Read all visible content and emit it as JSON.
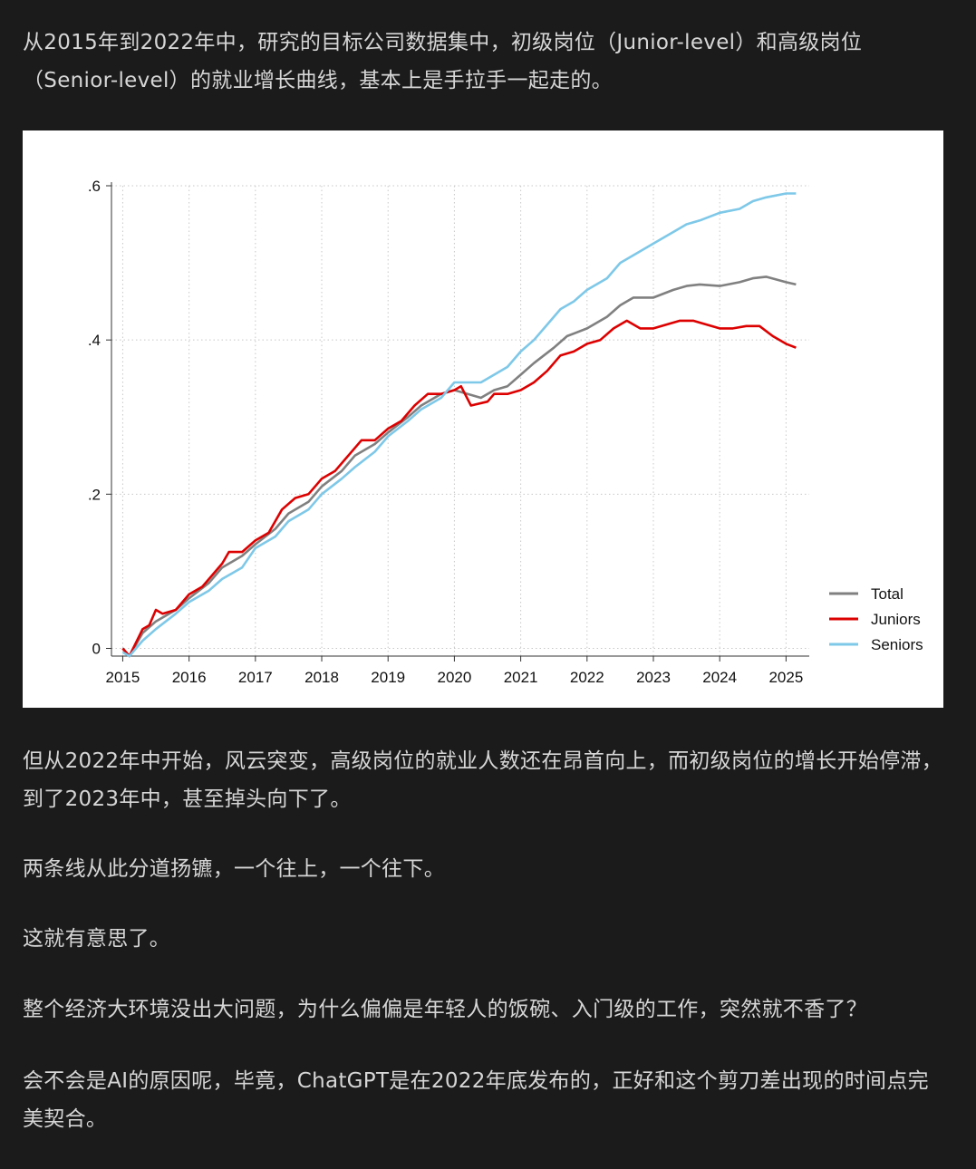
{
  "article": {
    "p1": "从2015年到2022年中，研究的目标公司数据集中，初级岗位（Junior-level）和高级岗位（Senior-level）的就业增长曲线，基本上是手拉手一起走的。",
    "p2": "但从2022年中开始，风云突变，高级岗位的就业人数还在昂首向上，而初级岗位的增长开始停滞，到了2023年中，甚至掉头向下了。",
    "p3": "两条线从此分道扬镳，一个往上，一个往下。",
    "p4": "这就有意思了。",
    "p5": "整个经济大环境没出大问题，为什么偏偏是年轻人的饭碗、入门级的工作，突然就不香了？",
    "p6": "会不会是AI的原因呢，毕竟，ChatGPT是在2022年底发布的，正好和这个剪刀差出现的时间点完美契合。"
  },
  "chart_data": {
    "type": "line",
    "title": "",
    "xlabel": "",
    "ylabel": "",
    "xlim": [
      2015,
      2025.2
    ],
    "ylim": [
      -0.01,
      0.6
    ],
    "xticks": [
      2015,
      2016,
      2017,
      2018,
      2019,
      2020,
      2021,
      2022,
      2023,
      2024,
      2025
    ],
    "xtick_labels": [
      "2015",
      "2016",
      "2017",
      "2018",
      "2019",
      "2020",
      "2021",
      "2022",
      "2023",
      "2024",
      "2025"
    ],
    "yticks": [
      0,
      0.2,
      0.4,
      0.6
    ],
    "ytick_labels": [
      "0",
      ".2",
      ".4",
      ".6"
    ],
    "grid": true,
    "legend": "bottom-right",
    "series": [
      {
        "name": "Total",
        "color": "#808080",
        "points": [
          [
            2015.0,
            0.0
          ],
          [
            2015.1,
            -0.01
          ],
          [
            2015.3,
            0.02
          ],
          [
            2015.5,
            0.035
          ],
          [
            2015.8,
            0.05
          ],
          [
            2016.0,
            0.065
          ],
          [
            2016.3,
            0.085
          ],
          [
            2016.5,
            0.105
          ],
          [
            2016.8,
            0.12
          ],
          [
            2017.0,
            0.135
          ],
          [
            2017.3,
            0.155
          ],
          [
            2017.5,
            0.175
          ],
          [
            2017.8,
            0.19
          ],
          [
            2018.0,
            0.21
          ],
          [
            2018.3,
            0.23
          ],
          [
            2018.5,
            0.25
          ],
          [
            2018.8,
            0.265
          ],
          [
            2019.0,
            0.28
          ],
          [
            2019.3,
            0.3
          ],
          [
            2019.5,
            0.315
          ],
          [
            2019.8,
            0.33
          ],
          [
            2020.0,
            0.335
          ],
          [
            2020.2,
            0.33
          ],
          [
            2020.4,
            0.325
          ],
          [
            2020.6,
            0.335
          ],
          [
            2020.8,
            0.34
          ],
          [
            2021.0,
            0.355
          ],
          [
            2021.2,
            0.37
          ],
          [
            2021.5,
            0.39
          ],
          [
            2021.7,
            0.405
          ],
          [
            2022.0,
            0.415
          ],
          [
            2022.3,
            0.43
          ],
          [
            2022.5,
            0.445
          ],
          [
            2022.7,
            0.455
          ],
          [
            2023.0,
            0.455
          ],
          [
            2023.3,
            0.465
          ],
          [
            2023.5,
            0.47
          ],
          [
            2023.7,
            0.472
          ],
          [
            2024.0,
            0.47
          ],
          [
            2024.3,
            0.475
          ],
          [
            2024.5,
            0.48
          ],
          [
            2024.7,
            0.482
          ],
          [
            2025.0,
            0.475
          ],
          [
            2025.15,
            0.472
          ]
        ]
      },
      {
        "name": "Juniors",
        "color": "#dd0000",
        "points": [
          [
            2015.0,
            0.0
          ],
          [
            2015.1,
            -0.01
          ],
          [
            2015.3,
            0.025
          ],
          [
            2015.4,
            0.03
          ],
          [
            2015.5,
            0.05
          ],
          [
            2015.6,
            0.045
          ],
          [
            2015.8,
            0.05
          ],
          [
            2016.0,
            0.07
          ],
          [
            2016.2,
            0.08
          ],
          [
            2016.4,
            0.1
          ],
          [
            2016.5,
            0.11
          ],
          [
            2016.6,
            0.125
          ],
          [
            2016.8,
            0.125
          ],
          [
            2017.0,
            0.14
          ],
          [
            2017.2,
            0.15
          ],
          [
            2017.4,
            0.18
          ],
          [
            2017.6,
            0.195
          ],
          [
            2017.8,
            0.2
          ],
          [
            2018.0,
            0.22
          ],
          [
            2018.2,
            0.23
          ],
          [
            2018.4,
            0.25
          ],
          [
            2018.6,
            0.27
          ],
          [
            2018.8,
            0.27
          ],
          [
            2019.0,
            0.285
          ],
          [
            2019.2,
            0.295
          ],
          [
            2019.4,
            0.315
          ],
          [
            2019.6,
            0.33
          ],
          [
            2019.8,
            0.33
          ],
          [
            2020.0,
            0.335
          ],
          [
            2020.1,
            0.34
          ],
          [
            2020.25,
            0.315
          ],
          [
            2020.5,
            0.32
          ],
          [
            2020.6,
            0.33
          ],
          [
            2020.8,
            0.33
          ],
          [
            2021.0,
            0.335
          ],
          [
            2021.2,
            0.345
          ],
          [
            2021.4,
            0.36
          ],
          [
            2021.6,
            0.38
          ],
          [
            2021.8,
            0.385
          ],
          [
            2022.0,
            0.395
          ],
          [
            2022.2,
            0.4
          ],
          [
            2022.4,
            0.415
          ],
          [
            2022.6,
            0.425
          ],
          [
            2022.8,
            0.415
          ],
          [
            2023.0,
            0.415
          ],
          [
            2023.2,
            0.42
          ],
          [
            2023.4,
            0.425
          ],
          [
            2023.6,
            0.425
          ],
          [
            2023.8,
            0.42
          ],
          [
            2024.0,
            0.415
          ],
          [
            2024.2,
            0.415
          ],
          [
            2024.4,
            0.418
          ],
          [
            2024.6,
            0.418
          ],
          [
            2024.8,
            0.405
          ],
          [
            2025.0,
            0.395
          ],
          [
            2025.15,
            0.39
          ]
        ]
      },
      {
        "name": "Seniors",
        "color": "#7ec8e8",
        "points": [
          [
            2015.0,
            -0.005
          ],
          [
            2015.1,
            -0.01
          ],
          [
            2015.3,
            0.01
          ],
          [
            2015.5,
            0.025
          ],
          [
            2015.8,
            0.045
          ],
          [
            2016.0,
            0.06
          ],
          [
            2016.3,
            0.075
          ],
          [
            2016.5,
            0.09
          ],
          [
            2016.8,
            0.105
          ],
          [
            2017.0,
            0.13
          ],
          [
            2017.3,
            0.145
          ],
          [
            2017.5,
            0.165
          ],
          [
            2017.8,
            0.18
          ],
          [
            2018.0,
            0.2
          ],
          [
            2018.3,
            0.22
          ],
          [
            2018.5,
            0.235
          ],
          [
            2018.8,
            0.255
          ],
          [
            2019.0,
            0.275
          ],
          [
            2019.3,
            0.295
          ],
          [
            2019.5,
            0.31
          ],
          [
            2019.8,
            0.325
          ],
          [
            2020.0,
            0.345
          ],
          [
            2020.2,
            0.345
          ],
          [
            2020.4,
            0.345
          ],
          [
            2020.6,
            0.355
          ],
          [
            2020.8,
            0.365
          ],
          [
            2021.0,
            0.385
          ],
          [
            2021.2,
            0.4
          ],
          [
            2021.4,
            0.42
          ],
          [
            2021.6,
            0.44
          ],
          [
            2021.8,
            0.45
          ],
          [
            2022.0,
            0.465
          ],
          [
            2022.3,
            0.48
          ],
          [
            2022.5,
            0.5
          ],
          [
            2022.7,
            0.51
          ],
          [
            2023.0,
            0.525
          ],
          [
            2023.3,
            0.54
          ],
          [
            2023.5,
            0.55
          ],
          [
            2023.7,
            0.555
          ],
          [
            2024.0,
            0.565
          ],
          [
            2024.3,
            0.57
          ],
          [
            2024.5,
            0.58
          ],
          [
            2024.7,
            0.585
          ],
          [
            2025.0,
            0.59
          ],
          [
            2025.15,
            0.59
          ]
        ]
      }
    ]
  }
}
